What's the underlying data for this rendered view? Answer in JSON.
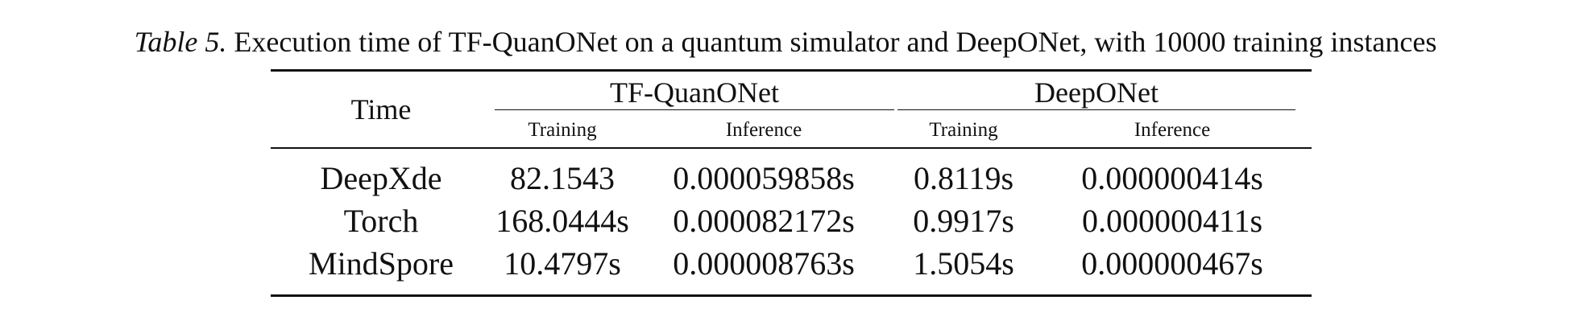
{
  "caption": {
    "label": "Table 5.",
    "text": "Execution time of TF-QuanONet on a quantum simulator and DeepONet, with 10000 training instances"
  },
  "table": {
    "corner_header": "Time",
    "groups": [
      "TF-QuanONet",
      "DeepONet"
    ],
    "sub_headers": [
      "Training",
      "Inference",
      "Training",
      "Inference"
    ],
    "rows": [
      {
        "name": "DeepXde",
        "values": [
          "82.1543",
          "0.000059858s",
          "0.8119s",
          "0.000000414s"
        ]
      },
      {
        "name": "Torch",
        "values": [
          "168.0444s",
          "0.000082172s",
          "0.9917s",
          "0.000000411s"
        ]
      },
      {
        "name": "MindSpore",
        "values": [
          "10.4797s",
          "0.000008763s",
          "1.5054s",
          "0.000000467s"
        ]
      }
    ]
  }
}
